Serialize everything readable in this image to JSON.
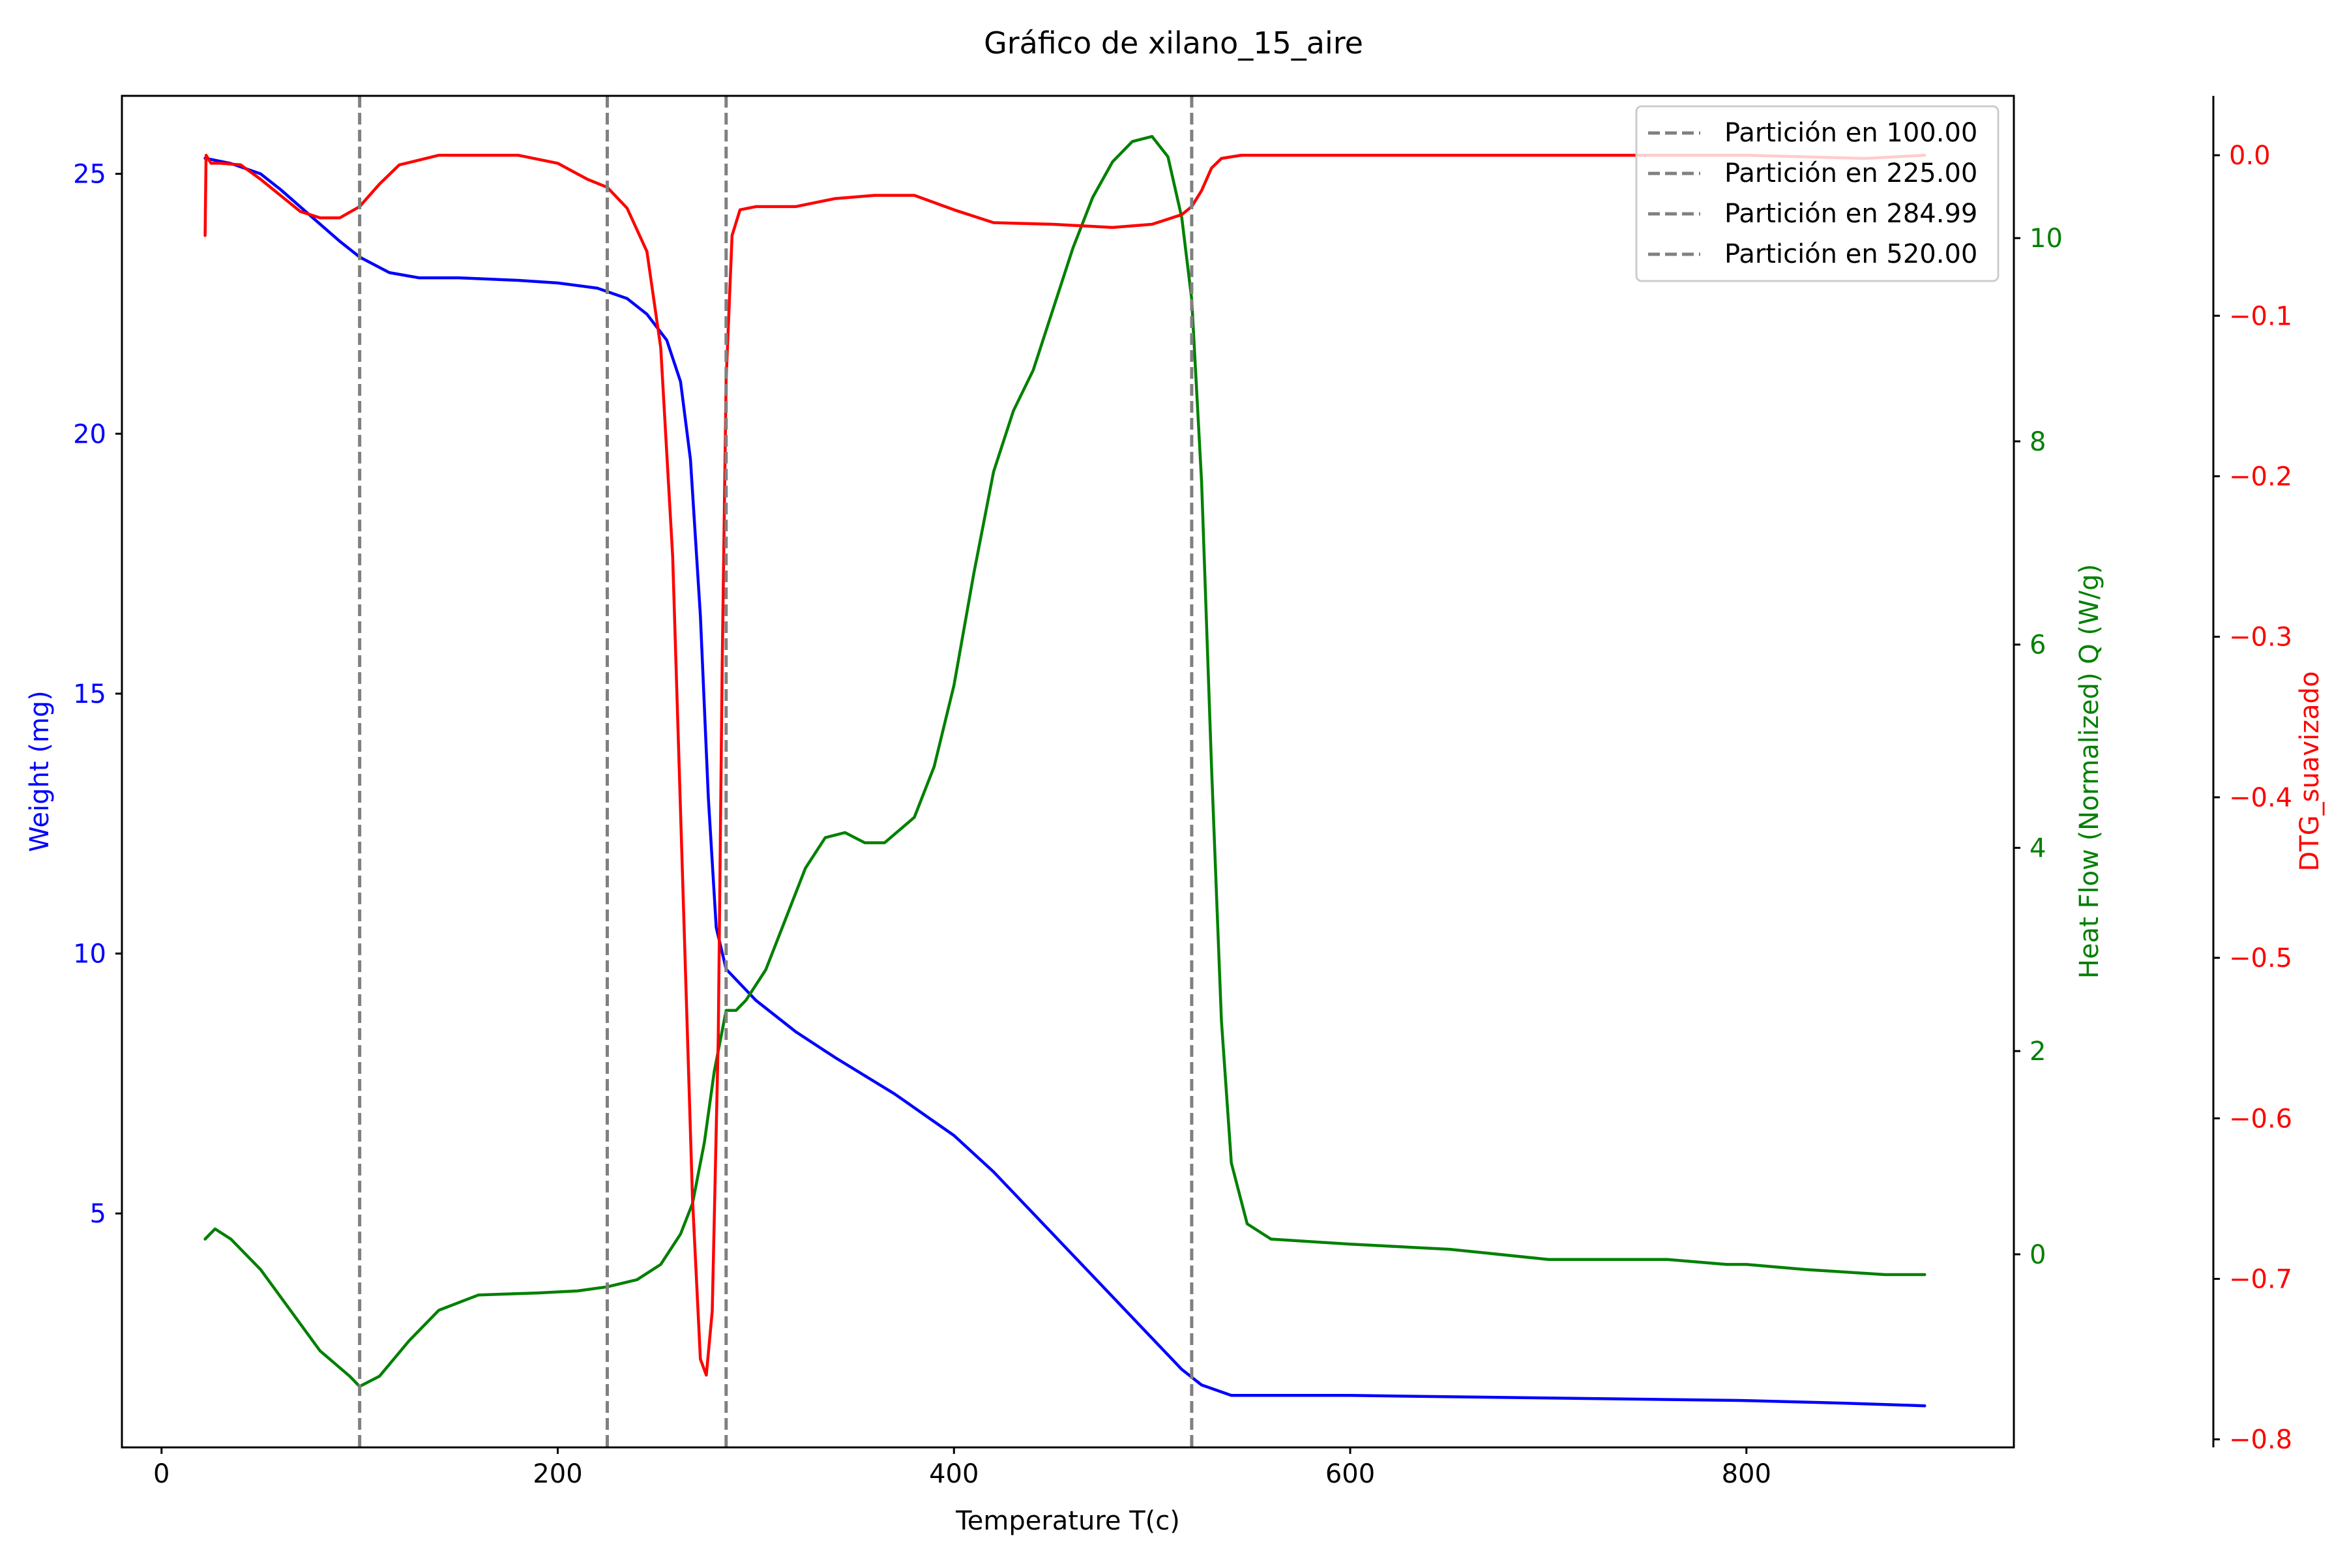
{
  "chart_data": {
    "type": "line",
    "title": "Gráfico de xilano_15_aire",
    "xlabel": "Temperature T(c)",
    "xlim": [
      -20,
      935
    ],
    "xticks": [
      0,
      200,
      400,
      600,
      800
    ],
    "xtick_labels": [
      "0",
      "200",
      "400",
      "600",
      "800"
    ],
    "legend_position": "top-right",
    "axes": {
      "weight": {
        "label": "Weight (mg)",
        "color": "#0000ff",
        "ylim": [
          0.5,
          26.5
        ],
        "ticks": [
          5,
          10,
          15,
          20,
          25
        ],
        "tick_labels": [
          "5",
          "10",
          "15",
          "20",
          "25"
        ]
      },
      "heat": {
        "label": "Heat Flow (Normalized) Q (W/g)",
        "color": "#008000",
        "ylim": [
          -1.9,
          11.4
        ],
        "ticks": [
          0,
          2,
          4,
          6,
          8,
          10
        ],
        "tick_labels": [
          "0",
          "2",
          "4",
          "6",
          "8",
          "10"
        ]
      },
      "dtg": {
        "label": "DTG_suavizado",
        "color": "#ff0000",
        "ylim": [
          -0.805,
          0.037
        ],
        "ticks": [
          0.0,
          -0.1,
          -0.2,
          -0.3,
          -0.4,
          -0.5,
          -0.6,
          -0.7,
          -0.8
        ],
        "tick_labels": [
          "0.0",
          "−0.1",
          "−0.2",
          "−0.3",
          "−0.4",
          "−0.5",
          "−0.6",
          "−0.7",
          "−0.8"
        ]
      }
    },
    "partitions": [
      {
        "x": 100.0,
        "label": "Partición en 100.00"
      },
      {
        "x": 225.0,
        "label": "Partición en 225.00"
      },
      {
        "x": 284.99,
        "label": "Partición en 284.99"
      },
      {
        "x": 520.0,
        "label": "Partición en 520.00"
      }
    ],
    "series": [
      {
        "id": "weight",
        "axis": "weight",
        "color": "#0000ff",
        "points": [
          [
            22,
            25.3
          ],
          [
            35,
            25.2
          ],
          [
            50,
            25.0
          ],
          [
            60,
            24.7
          ],
          [
            75,
            24.2
          ],
          [
            90,
            23.7
          ],
          [
            100,
            23.4
          ],
          [
            115,
            23.1
          ],
          [
            130,
            23.0
          ],
          [
            150,
            23.0
          ],
          [
            180,
            22.95
          ],
          [
            200,
            22.9
          ],
          [
            220,
            22.8
          ],
          [
            235,
            22.6
          ],
          [
            245,
            22.3
          ],
          [
            255,
            21.8
          ],
          [
            262,
            21.0
          ],
          [
            267,
            19.5
          ],
          [
            272,
            16.5
          ],
          [
            276,
            13.0
          ],
          [
            280,
            10.5
          ],
          [
            285,
            9.7
          ],
          [
            300,
            9.1
          ],
          [
            320,
            8.5
          ],
          [
            340,
            8.0
          ],
          [
            370,
            7.3
          ],
          [
            400,
            6.5
          ],
          [
            420,
            5.8
          ],
          [
            450,
            4.6
          ],
          [
            480,
            3.4
          ],
          [
            500,
            2.6
          ],
          [
            515,
            2.0
          ],
          [
            525,
            1.7
          ],
          [
            540,
            1.5
          ],
          [
            600,
            1.5
          ],
          [
            700,
            1.45
          ],
          [
            800,
            1.4
          ],
          [
            850,
            1.35
          ],
          [
            890,
            1.3
          ]
        ]
      },
      {
        "id": "heat",
        "axis": "heat",
        "color": "#008000",
        "points": [
          [
            22,
            0.15
          ],
          [
            27,
            0.25
          ],
          [
            35,
            0.15
          ],
          [
            50,
            -0.15
          ],
          [
            65,
            -0.55
          ],
          [
            80,
            -0.95
          ],
          [
            95,
            -1.2
          ],
          [
            100,
            -1.3
          ],
          [
            110,
            -1.2
          ],
          [
            125,
            -0.85
          ],
          [
            140,
            -0.55
          ],
          [
            160,
            -0.4
          ],
          [
            190,
            -0.38
          ],
          [
            210,
            -0.36
          ],
          [
            225,
            -0.32
          ],
          [
            240,
            -0.25
          ],
          [
            252,
            -0.1
          ],
          [
            262,
            0.2
          ],
          [
            268,
            0.5
          ],
          [
            274,
            1.1
          ],
          [
            279,
            1.8
          ],
          [
            285,
            2.4
          ],
          [
            290,
            2.4
          ],
          [
            295,
            2.5
          ],
          [
            305,
            2.8
          ],
          [
            315,
            3.3
          ],
          [
            325,
            3.8
          ],
          [
            335,
            4.1
          ],
          [
            345,
            4.15
          ],
          [
            355,
            4.05
          ],
          [
            365,
            4.05
          ],
          [
            380,
            4.3
          ],
          [
            390,
            4.8
          ],
          [
            400,
            5.6
          ],
          [
            410,
            6.7
          ],
          [
            420,
            7.7
          ],
          [
            430,
            8.3
          ],
          [
            440,
            8.7
          ],
          [
            450,
            9.3
          ],
          [
            460,
            9.9
          ],
          [
            470,
            10.4
          ],
          [
            480,
            10.75
          ],
          [
            490,
            10.95
          ],
          [
            500,
            11.0
          ],
          [
            508,
            10.8
          ],
          [
            515,
            10.2
          ],
          [
            520,
            9.4
          ],
          [
            525,
            7.6
          ],
          [
            530,
            4.8
          ],
          [
            535,
            2.3
          ],
          [
            540,
            0.9
          ],
          [
            548,
            0.3
          ],
          [
            560,
            0.15
          ],
          [
            600,
            0.1
          ],
          [
            650,
            0.05
          ],
          [
            700,
            -0.05
          ],
          [
            720,
            -0.05
          ],
          [
            760,
            -0.05
          ],
          [
            790,
            -0.1
          ],
          [
            800,
            -0.1
          ],
          [
            830,
            -0.15
          ],
          [
            870,
            -0.2
          ],
          [
            890,
            -0.2
          ]
        ]
      },
      {
        "id": "dtg",
        "axis": "dtg",
        "color": "#ff0000",
        "points": [
          [
            22,
            -0.05
          ],
          [
            22.5,
            0.0
          ],
          [
            25,
            -0.005
          ],
          [
            30,
            -0.005
          ],
          [
            40,
            -0.006
          ],
          [
            50,
            -0.015
          ],
          [
            60,
            -0.025
          ],
          [
            70,
            -0.035
          ],
          [
            80,
            -0.039
          ],
          [
            90,
            -0.039
          ],
          [
            100,
            -0.032
          ],
          [
            110,
            -0.018
          ],
          [
            120,
            -0.006
          ],
          [
            140,
            0.0
          ],
          [
            180,
            0.0
          ],
          [
            200,
            -0.005
          ],
          [
            215,
            -0.015
          ],
          [
            225,
            -0.02
          ],
          [
            235,
            -0.033
          ],
          [
            245,
            -0.06
          ],
          [
            252,
            -0.12
          ],
          [
            258,
            -0.25
          ],
          [
            263,
            -0.45
          ],
          [
            268,
            -0.65
          ],
          [
            272,
            -0.75
          ],
          [
            275,
            -0.76
          ],
          [
            278,
            -0.72
          ],
          [
            281,
            -0.55
          ],
          [
            283,
            -0.32
          ],
          [
            285,
            -0.14
          ],
          [
            288,
            -0.05
          ],
          [
            292,
            -0.034
          ],
          [
            300,
            -0.032
          ],
          [
            320,
            -0.032
          ],
          [
            340,
            -0.027
          ],
          [
            360,
            -0.025
          ],
          [
            380,
            -0.025
          ],
          [
            400,
            -0.034
          ],
          [
            420,
            -0.042
          ],
          [
            450,
            -0.043
          ],
          [
            480,
            -0.045
          ],
          [
            500,
            -0.043
          ],
          [
            515,
            -0.037
          ],
          [
            520,
            -0.032
          ],
          [
            525,
            -0.022
          ],
          [
            530,
            -0.008
          ],
          [
            535,
            -0.002
          ],
          [
            545,
            0.0
          ],
          [
            600,
            0.0
          ],
          [
            800,
            0.0
          ],
          [
            860,
            -0.002
          ],
          [
            890,
            0.0
          ]
        ]
      }
    ]
  }
}
